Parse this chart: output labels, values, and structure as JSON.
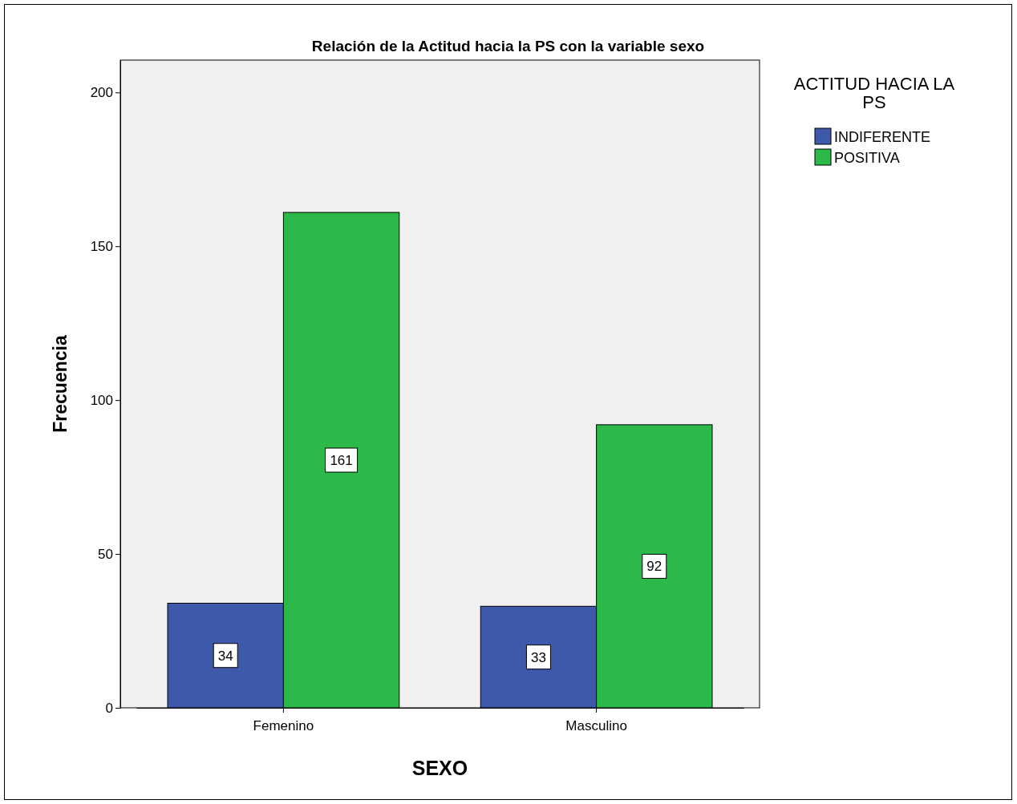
{
  "chart_data": {
    "type": "bar",
    "title": "Relación de la Actitud hacia la PS con la variable sexo",
    "xlabel": "SEXO",
    "ylabel": "Frecuencia",
    "legend_title": "ACTITUD HACIA LA PS",
    "categories": [
      "Femenino",
      "Masculino"
    ],
    "series": [
      {
        "name": "INDIFERENTE",
        "color": "#3e58ac",
        "values": [
          34,
          33
        ]
      },
      {
        "name": "POSITIVA",
        "color": "#2db84a",
        "values": [
          161,
          92
        ]
      }
    ],
    "ylim": [
      0,
      210.5
    ],
    "yticks": [
      0,
      50,
      100,
      150,
      200
    ],
    "grid": false,
    "legend": "top right",
    "data_labels": true
  }
}
